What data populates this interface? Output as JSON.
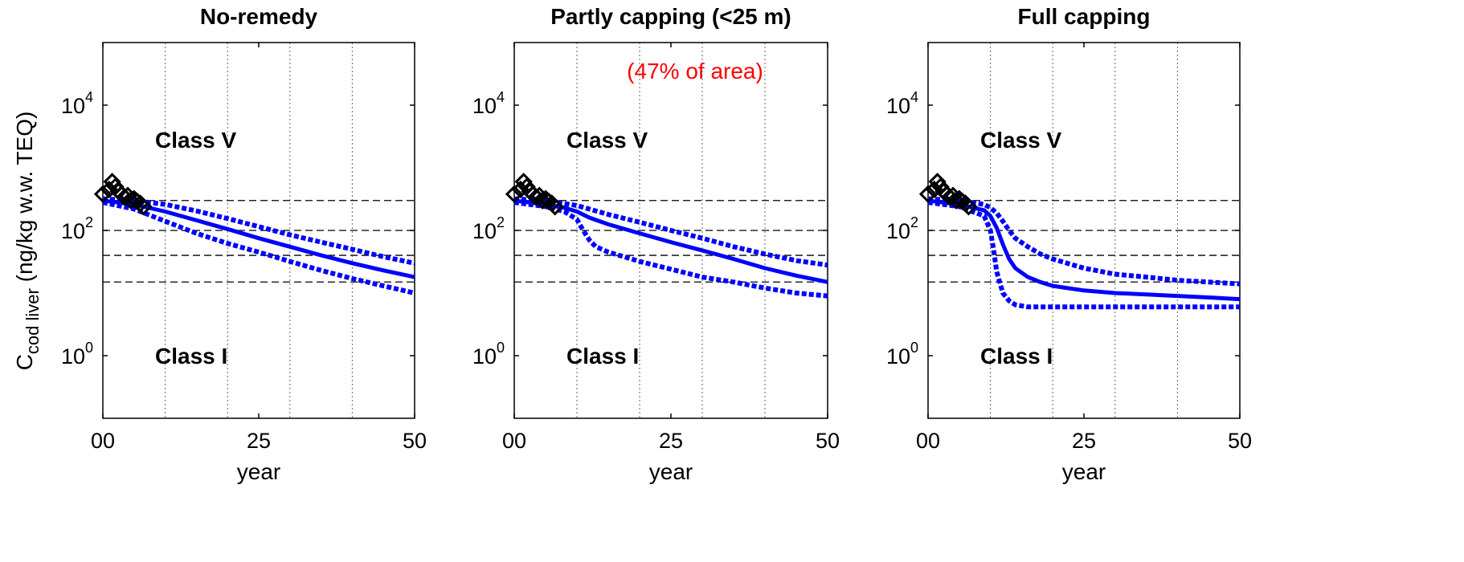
{
  "chart_data": [
    {
      "type": "line",
      "title": "No-remedy",
      "xlabel": "year",
      "ylabel": "C",
      "ylabel_sub": "cod liver",
      "ylabel_units": " (ng/kg w.w. TEQ)",
      "xlim": [
        0,
        50
      ],
      "ylim": [
        0.1,
        100000
      ],
      "y_scale": "log",
      "x_ticks": [
        "00",
        "25",
        "50"
      ],
      "y_ticks": [
        {
          "base": "10",
          "exp": "0"
        },
        {
          "base": "10",
          "exp": "2"
        },
        {
          "base": "10",
          "exp": "4"
        }
      ],
      "class_labels": {
        "upper": "Class V",
        "lower": "Class I"
      },
      "thresholds": [
        300,
        100,
        40,
        15
      ],
      "vertical_gridlines": [
        10,
        20,
        30,
        40
      ],
      "series": [
        {
          "style": "solid",
          "color": "#0000ff",
          "x": [
            0,
            5,
            10,
            15,
            20,
            25,
            30,
            35,
            40,
            45,
            50
          ],
          "y": [
            300,
            260,
            200,
            145,
            105,
            75,
            55,
            40,
            30,
            23,
            18
          ]
        },
        {
          "style": "dotted",
          "color": "#0000ff",
          "x": [
            0,
            5,
            10,
            15,
            20,
            25,
            30,
            35,
            40,
            45,
            50
          ],
          "y": [
            320,
            300,
            260,
            205,
            155,
            115,
            85,
            65,
            50,
            38,
            30
          ]
        },
        {
          "style": "dotted",
          "color": "#0000ff",
          "x": [
            0,
            5,
            10,
            15,
            20,
            25,
            30,
            35,
            40,
            45,
            50
          ],
          "y": [
            280,
            220,
            140,
            90,
            62,
            45,
            32,
            23,
            17,
            13,
            10
          ]
        }
      ],
      "observations": {
        "marker": "diamond",
        "x": [
          0,
          1,
          1.5,
          2,
          2.5,
          3,
          3.5,
          4,
          4.5,
          5,
          5.5,
          6,
          6.5
        ],
        "y": [
          380,
          450,
          600,
          500,
          420,
          380,
          340,
          360,
          300,
          320,
          290,
          270,
          240
        ]
      }
    },
    {
      "type": "line",
      "title": "Partly capping (<25 m)",
      "annotation": "(47% of area)",
      "annotation_color": "#ff0000",
      "xlabel": "year",
      "xlim": [
        0,
        50
      ],
      "ylim": [
        0.1,
        100000
      ],
      "y_scale": "log",
      "x_ticks": [
        "00",
        "25",
        "50"
      ],
      "y_ticks": [
        {
          "base": "10",
          "exp": "0"
        },
        {
          "base": "10",
          "exp": "2"
        },
        {
          "base": "10",
          "exp": "4"
        }
      ],
      "class_labels": {
        "upper": "Class V",
        "lower": "Class I"
      },
      "thresholds": [
        300,
        100,
        40,
        15
      ],
      "vertical_gridlines": [
        10,
        20,
        30,
        40
      ],
      "series": [
        {
          "style": "solid",
          "color": "#0000ff",
          "x": [
            0,
            5,
            8,
            10,
            12,
            15,
            20,
            25,
            30,
            35,
            40,
            45,
            50
          ],
          "y": [
            300,
            260,
            230,
            200,
            160,
            125,
            90,
            65,
            48,
            35,
            25,
            19,
            15
          ]
        },
        {
          "style": "dotted",
          "color": "#0000ff",
          "x": [
            0,
            5,
            10,
            15,
            20,
            25,
            30,
            35,
            40,
            45,
            50
          ],
          "y": [
            320,
            300,
            250,
            180,
            135,
            100,
            75,
            55,
            42,
            33,
            28
          ]
        },
        {
          "style": "dotted",
          "color": "#0000ff",
          "x": [
            0,
            5,
            8,
            10,
            11,
            12,
            13,
            15,
            20,
            25,
            30,
            35,
            40,
            45,
            50
          ],
          "y": [
            280,
            240,
            200,
            150,
            100,
            70,
            55,
            45,
            32,
            24,
            18,
            15,
            12,
            10,
            9
          ]
        }
      ],
      "observations": {
        "marker": "diamond",
        "x": [
          0,
          1,
          1.5,
          2,
          2.5,
          3,
          3.5,
          4,
          4.5,
          5,
          5.5,
          6,
          6.5
        ],
        "y": [
          380,
          450,
          600,
          500,
          420,
          380,
          340,
          360,
          300,
          320,
          290,
          270,
          240
        ]
      }
    },
    {
      "type": "line",
      "title": "Full capping",
      "xlabel": "year",
      "xlim": [
        0,
        50
      ],
      "ylim": [
        0.1,
        100000
      ],
      "y_scale": "log",
      "x_ticks": [
        "00",
        "25",
        "50"
      ],
      "y_ticks": [
        {
          "base": "10",
          "exp": "0"
        },
        {
          "base": "10",
          "exp": "2"
        },
        {
          "base": "10",
          "exp": "4"
        }
      ],
      "class_labels": {
        "upper": "Class V",
        "lower": "Class I"
      },
      "thresholds": [
        300,
        100,
        40,
        15
      ],
      "vertical_gridlines": [
        10,
        20,
        30,
        40
      ],
      "series": [
        {
          "style": "solid",
          "color": "#0000ff",
          "x": [
            0,
            5,
            9,
            10,
            11,
            12,
            13,
            14,
            16,
            18,
            20,
            25,
            30,
            35,
            40,
            45,
            50
          ],
          "y": [
            300,
            260,
            210,
            170,
            110,
            60,
            35,
            25,
            18,
            15,
            13,
            11,
            10,
            9.5,
            9,
            8.5,
            8
          ]
        },
        {
          "style": "dotted",
          "color": "#0000ff",
          "x": [
            0,
            5,
            9,
            10,
            11,
            12,
            13,
            14,
            16,
            18,
            20,
            25,
            30,
            35,
            40,
            45,
            50
          ],
          "y": [
            320,
            300,
            260,
            230,
            190,
            140,
            100,
            75,
            55,
            42,
            35,
            25,
            20,
            18,
            16,
            15,
            14
          ]
        },
        {
          "style": "dotted",
          "color": "#0000ff",
          "x": [
            0,
            5,
            9,
            10,
            10.5,
            11,
            12,
            13,
            14,
            16,
            18,
            20,
            25,
            30,
            35,
            40,
            45,
            50
          ],
          "y": [
            280,
            240,
            170,
            100,
            50,
            22,
            10,
            7.5,
            6.5,
            6,
            6,
            6,
            6,
            6,
            6,
            6,
            6,
            6
          ]
        }
      ],
      "observations": {
        "marker": "diamond",
        "x": [
          0,
          1,
          1.5,
          2,
          2.5,
          3,
          3.5,
          4,
          4.5,
          5,
          5.5,
          6,
          6.5
        ],
        "y": [
          380,
          450,
          600,
          500,
          420,
          380,
          340,
          360,
          300,
          320,
          290,
          270,
          240
        ]
      }
    }
  ]
}
